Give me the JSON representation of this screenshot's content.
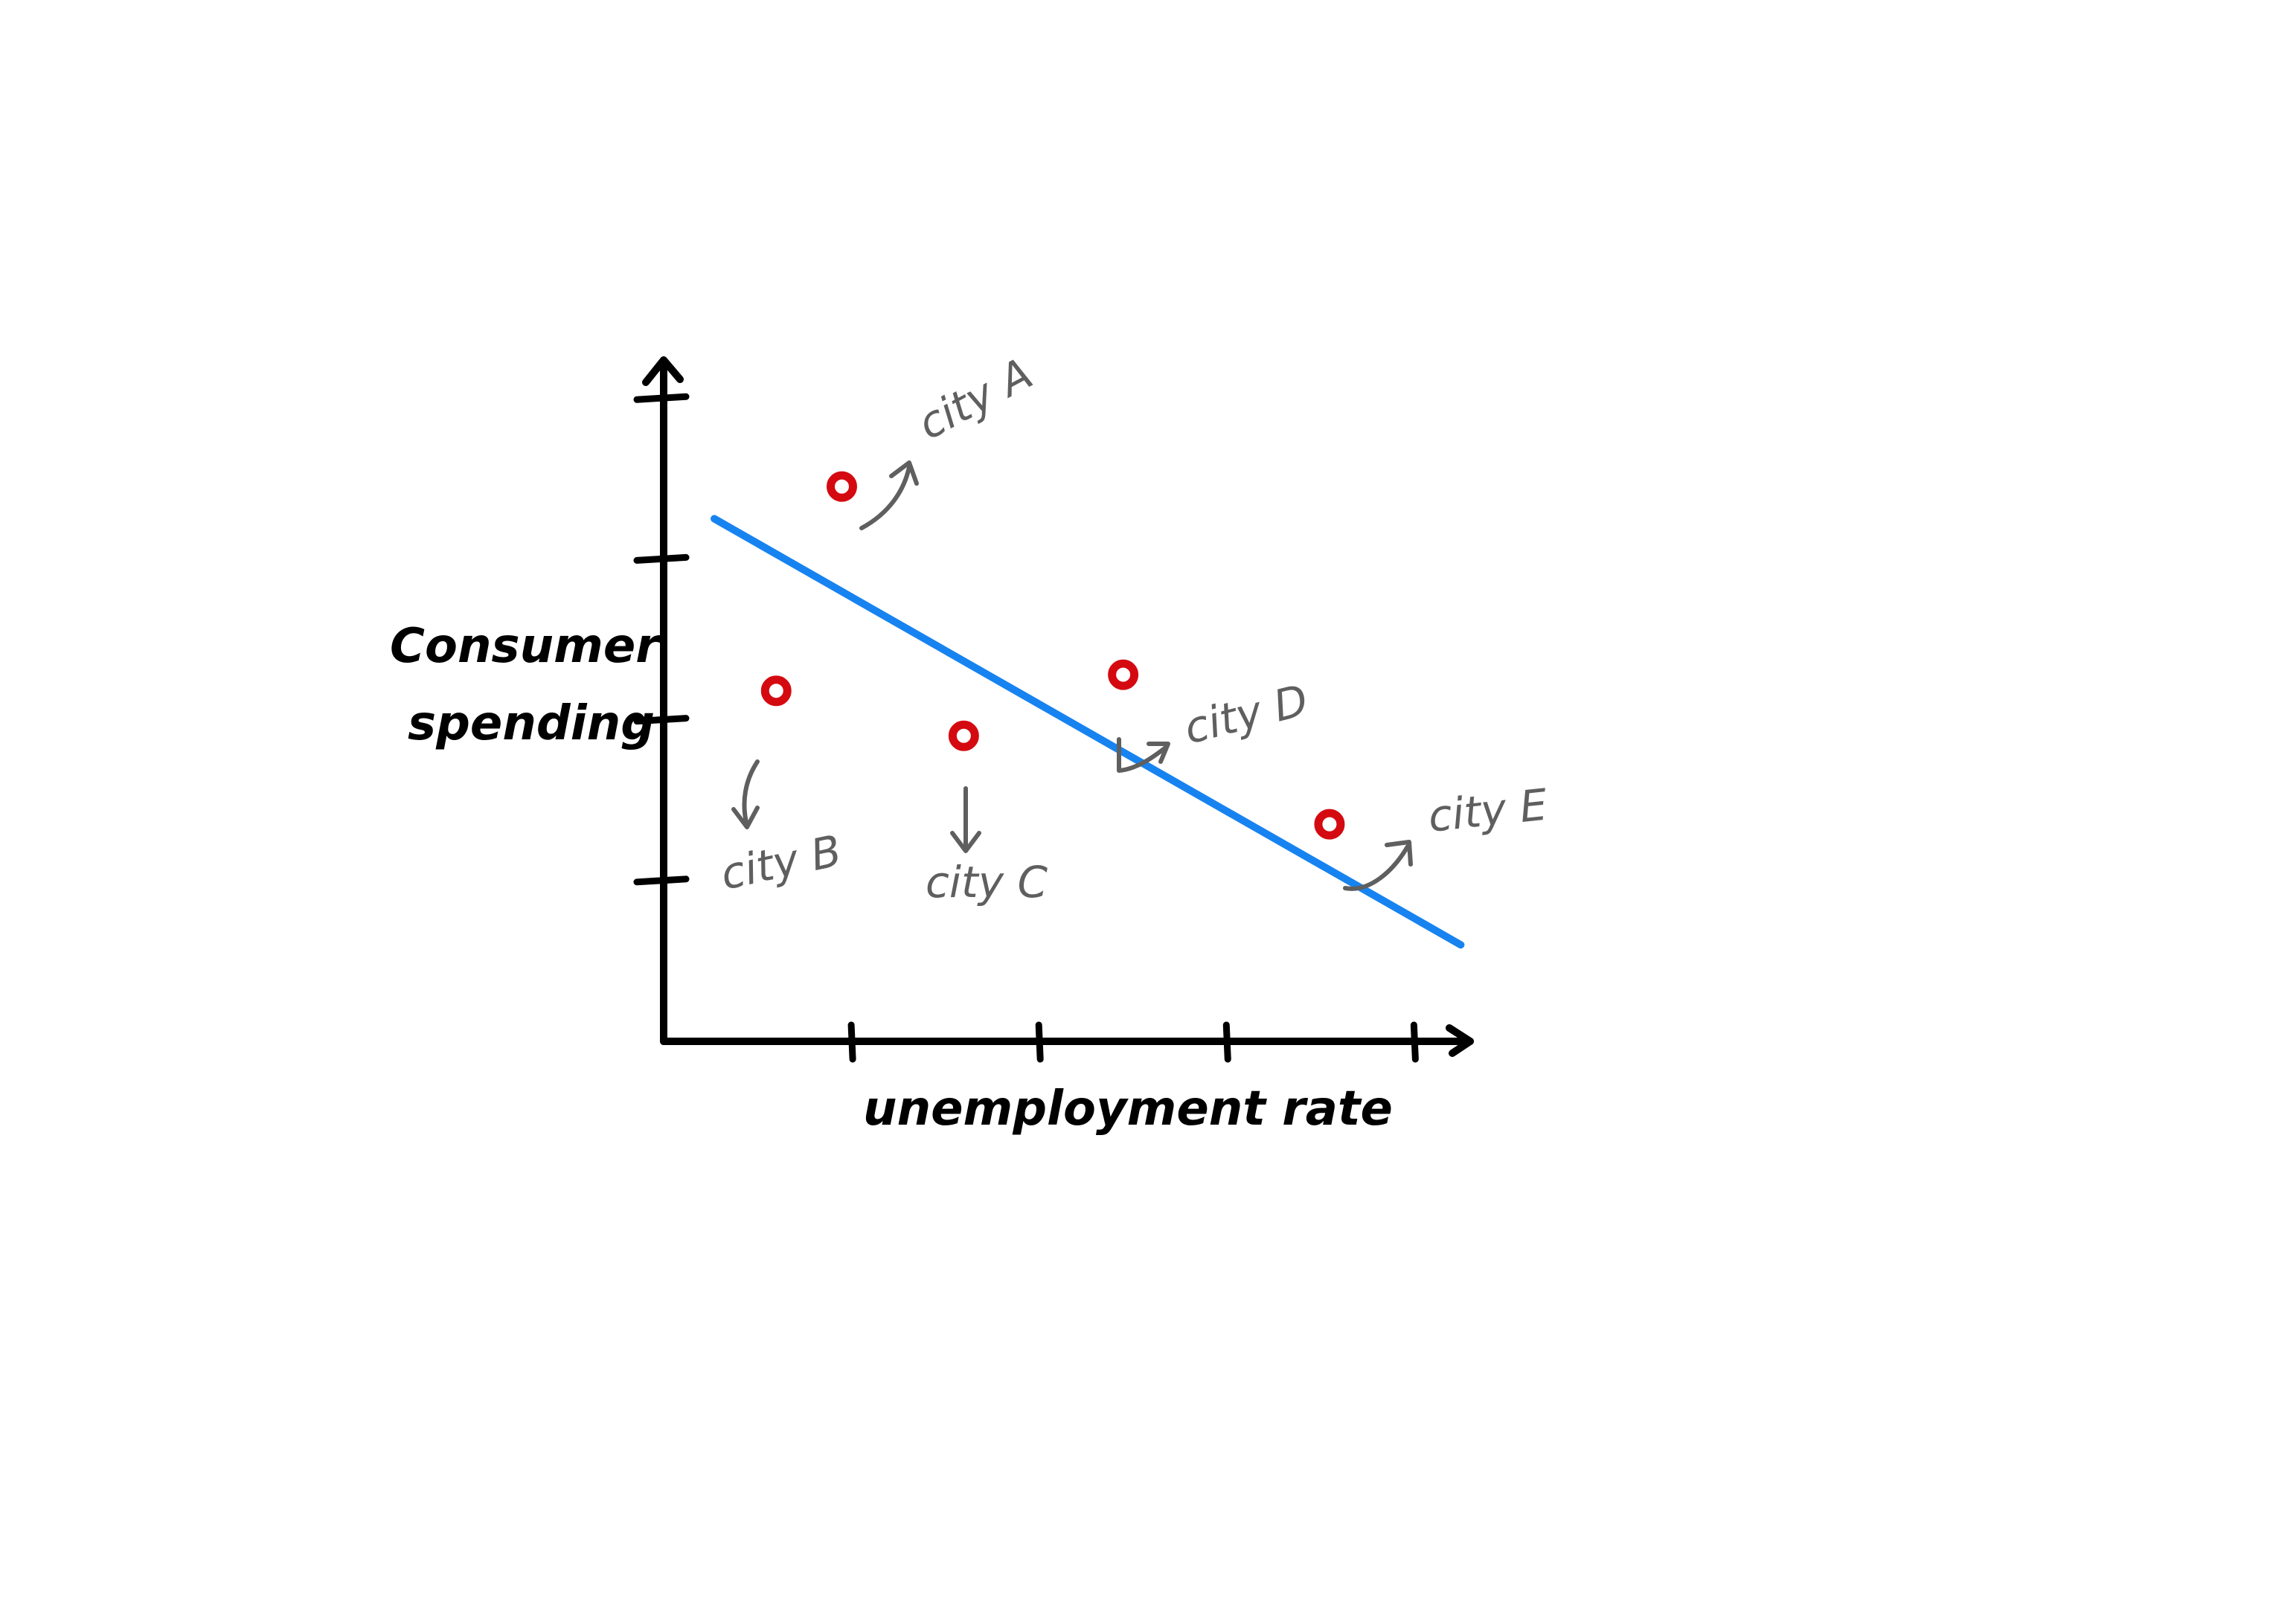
{
  "chart_data": {
    "type": "scatter",
    "title": "",
    "xlabel": "unemployment rate",
    "ylabel_lines": [
      "Consumer",
      "spending"
    ],
    "x_ticks": [
      1,
      2,
      3,
      4
    ],
    "y_ticks": [
      1,
      2,
      3,
      4
    ],
    "xlim": [
      0,
      4.3
    ],
    "ylim": [
      0,
      4.2
    ],
    "points": [
      {
        "label": "city A",
        "x": 0.95,
        "y": 3.45
      },
      {
        "label": "city B",
        "x": 0.6,
        "y": 2.18
      },
      {
        "label": "city C",
        "x": 1.6,
        "y": 1.9
      },
      {
        "label": "city D",
        "x": 2.45,
        "y": 2.28
      },
      {
        "label": "city E",
        "x": 3.55,
        "y": 1.35
      }
    ],
    "trend_line": {
      "x": [
        0.27,
        4.25
      ],
      "y": [
        3.25,
        0.6
      ]
    },
    "grid": false,
    "legend": "none",
    "colors": {
      "axis": "#000000",
      "trend": "#1783f0",
      "point": "#d40a10",
      "annotation": "#5f5f5f"
    }
  }
}
